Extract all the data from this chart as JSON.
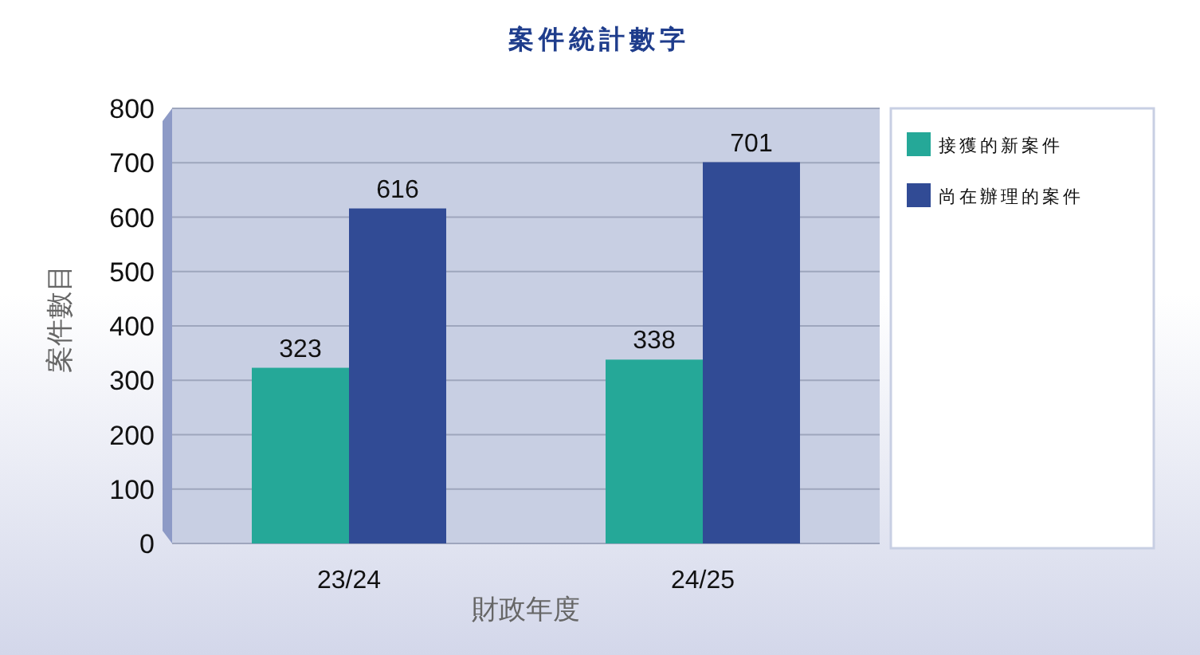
{
  "chart_data": {
    "type": "bar",
    "title": "案件統計數字",
    "xlabel": "財政年度",
    "ylabel": "案件數目",
    "categories": [
      "23/24",
      "24/25"
    ],
    "series": [
      {
        "name": "接獲的新案件",
        "color": "#25a898",
        "values": [
          323,
          338
        ]
      },
      {
        "name": "尚在辦理的案件",
        "color": "#314b95",
        "values": [
          616,
          701
        ]
      }
    ],
    "ylim": [
      0,
      800
    ],
    "yticks": [
      0,
      100,
      200,
      300,
      400,
      500,
      600,
      700,
      800
    ],
    "grid": "y",
    "legend": "right",
    "data_labels": true
  }
}
